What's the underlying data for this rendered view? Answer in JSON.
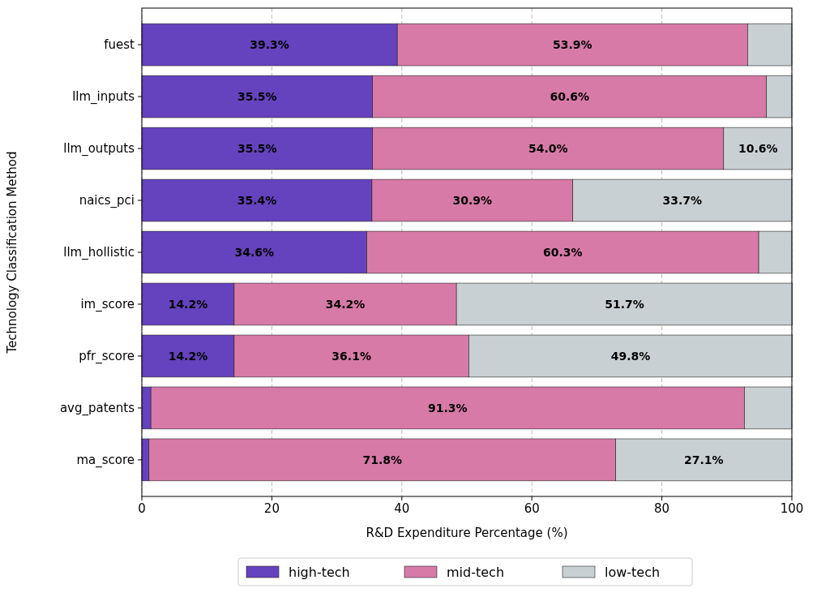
{
  "chart_data": {
    "type": "bar",
    "orientation": "horizontal",
    "stacked": true,
    "categories": [
      "fuest",
      "llm_inputs",
      "llm_outputs",
      "naics_pci",
      "llm_hollistic",
      "im_score",
      "pfr_score",
      "avg_patents",
      "ma_score"
    ],
    "series": [
      {
        "name": "high-tech",
        "color": "#6542be",
        "values": [
          39.3,
          35.5,
          35.5,
          35.4,
          34.6,
          14.2,
          14.2,
          1.4,
          1.1
        ],
        "value_labels": [
          "39.3%",
          "35.5%",
          "35.5%",
          "35.4%",
          "34.6%",
          "14.2%",
          "14.2%",
          null,
          null
        ]
      },
      {
        "name": "mid-tech",
        "color": "#d77aa7",
        "values": [
          53.9,
          60.6,
          54.0,
          30.9,
          60.3,
          34.2,
          36.1,
          91.3,
          71.8
        ],
        "value_labels": [
          "53.9%",
          "60.6%",
          "54.0%",
          "30.9%",
          "60.3%",
          "34.2%",
          "36.1%",
          "91.3%",
          "71.8%"
        ]
      },
      {
        "name": "low-tech",
        "color": "#c9d0d3",
        "values": [
          6.8,
          3.9,
          10.6,
          33.7,
          5.1,
          51.7,
          49.8,
          7.3,
          27.1
        ],
        "value_labels": [
          null,
          null,
          "10.6%",
          "33.7%",
          null,
          "51.7%",
          "49.8%",
          null,
          "27.1%"
        ]
      }
    ],
    "xlim": [
      0,
      100
    ],
    "xticks": [
      0,
      20,
      40,
      60,
      80,
      100
    ],
    "xlabel": "R&D Expenditure Percentage (%)",
    "ylabel": "Technology Classification Method",
    "grid": "x",
    "legend": "bottom"
  }
}
